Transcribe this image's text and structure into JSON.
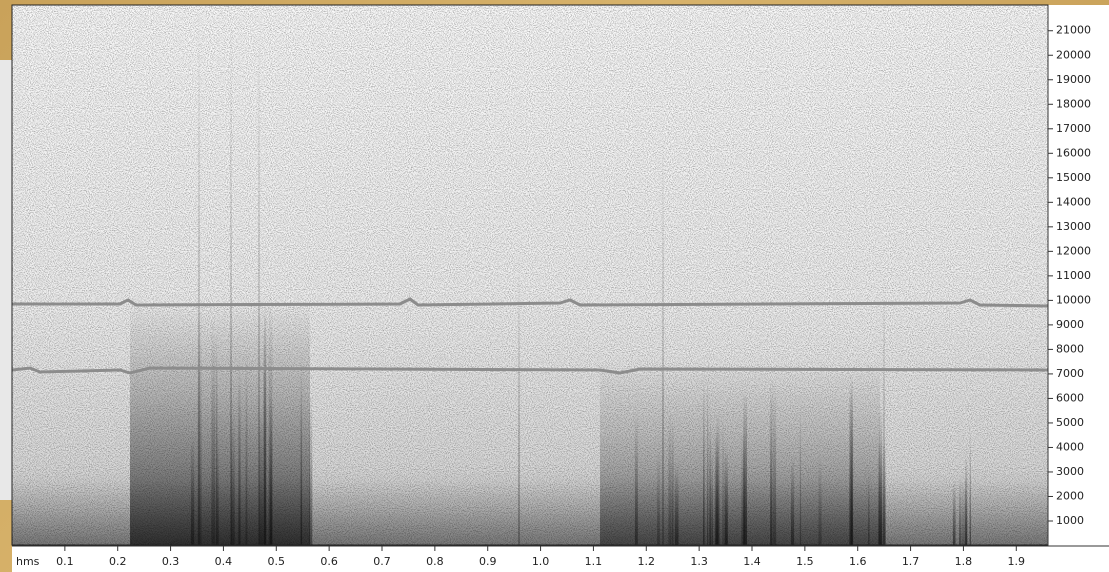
{
  "chart_data": {
    "type": "spectrogram",
    "x_label": "hms",
    "xlim": [
      0,
      1.96
    ],
    "xticks": [
      0.1,
      0.2,
      0.3,
      0.4,
      0.5,
      0.6,
      0.7,
      0.8,
      0.9,
      {
        "value": 1,
        "label": "1.0"
      },
      1.1,
      1.2,
      1.3,
      1.4,
      1.5,
      1.6,
      1.7,
      1.8,
      1.9
    ],
    "ylim": [
      0,
      22050
    ],
    "yticks": [
      1000,
      2000,
      3000,
      4000,
      5000,
      6000,
      7000,
      8000,
      9000,
      10000,
      11000,
      12000,
      13000,
      14000,
      15000,
      16000,
      17000,
      18000,
      19000,
      20000,
      21000
    ]
  }
}
